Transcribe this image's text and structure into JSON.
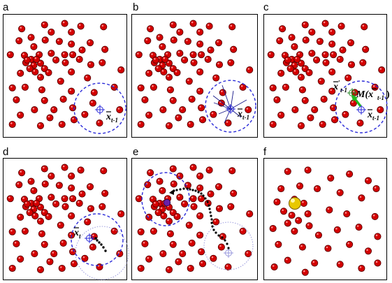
{
  "panels": [
    {
      "label": "a",
      "math": {
        "var": "x",
        "sub": "t-1"
      }
    },
    {
      "label": "b",
      "math": {
        "var": "x",
        "sub": "t-1"
      }
    },
    {
      "label": "c",
      "math": {
        "var": "x",
        "prime": "′",
        "sub": "t-1",
        "mean_label": "M(x",
        "mean_sub": "t-1",
        "mean_close": ")",
        "sub2": "t-1"
      }
    },
    {
      "label": "d",
      "math": {
        "var": "x",
        "sub": "t"
      }
    },
    {
      "label": "e"
    },
    {
      "label": "f"
    }
  ],
  "colors": {
    "point_fill": "#d40000",
    "point_stroke": "#5a0000",
    "window": "#2a2ad8",
    "old_window": "#9999dd",
    "shift_arrow": "#22bb22",
    "final_point": "#e8c800",
    "path_dots": "#000000"
  }
}
